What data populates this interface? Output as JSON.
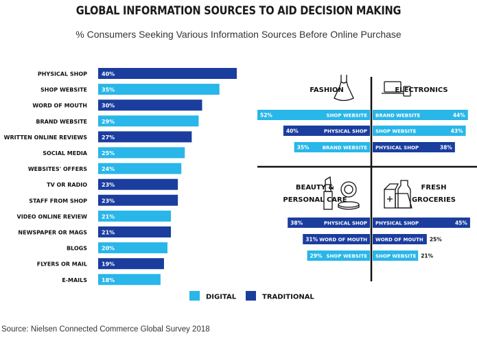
{
  "title": "GLOBAL INFORMATION SOURCES TO AID DECISION MAKING",
  "subtitle": "% Consumers Seeking Various Information Sources Before Online Purchase",
  "source": "Source: Nielsen Connected Commerce Global Survey 2018",
  "colors": {
    "digital": "#29b6e8",
    "traditional": "#1a3d9e"
  },
  "legend": [
    {
      "label": "DIGITAL",
      "type": "digital"
    },
    {
      "label": "TRADITIONAL",
      "type": "traditional"
    }
  ],
  "chart_data": [
    {
      "type": "bar",
      "orientation": "horizontal",
      "xlim": [
        0,
        40
      ],
      "categories": [
        "PHYSICAL SHOP",
        "SHOP WEBSITE",
        "WORD OF MOUTH",
        "BRAND WEBSITE",
        "WRITTEN ONLINE REVIEWS",
        "SOCIAL MEDIA",
        "WEBSITES' OFFERS",
        "TV OR RADIO",
        "STAFF FROM SHOP",
        "VIDEO ONLINE REVIEW",
        "NEWSPAPER OR MAGS",
        "BLOGS",
        "FLYERS OR MAIL",
        "E-MAILS"
      ],
      "values": [
        40,
        35,
        30,
        29,
        27,
        25,
        24,
        23,
        23,
        21,
        21,
        20,
        19,
        18
      ],
      "value_labels": [
        "40%",
        "35%",
        "30%",
        "29%",
        "27%",
        "25%",
        "24%",
        "23%",
        "23%",
        "21%",
        "21%",
        "20%",
        "19%",
        "18%"
      ],
      "source_type": [
        "traditional",
        "digital",
        "traditional",
        "digital",
        "traditional",
        "digital",
        "digital",
        "traditional",
        "traditional",
        "digital",
        "traditional",
        "digital",
        "traditional",
        "digital"
      ]
    },
    {
      "type": "bar",
      "panel": "FASHION",
      "side": "left",
      "categories": [
        "SHOP WEBSITE",
        "PHYSICAL SHOP",
        "BRAND WEBSITE"
      ],
      "values": [
        52,
        40,
        35
      ],
      "value_labels": [
        "52%",
        "40%",
        "35%"
      ],
      "source_type": [
        "digital",
        "traditional",
        "digital"
      ]
    },
    {
      "type": "bar",
      "panel": "ELECTRONICS",
      "side": "right",
      "categories": [
        "BRAND WEBSITE",
        "SHOP WEBSITE",
        "PHYSICAL SHOP"
      ],
      "values": [
        44,
        43,
        38
      ],
      "value_labels": [
        "44%",
        "43%",
        "38%"
      ],
      "source_type": [
        "digital",
        "digital",
        "traditional"
      ]
    },
    {
      "type": "bar",
      "panel": "BEAUTY & PERSONAL CARE",
      "title_lines": [
        "BEAUTY &",
        "PERSONAL CARE"
      ],
      "side": "left",
      "categories": [
        "PHYSICAL SHOP",
        "WORD OF MOUTH",
        "SHOP WEBSITE"
      ],
      "values": [
        38,
        31,
        29
      ],
      "value_labels": [
        "38%",
        "31%",
        "29%"
      ],
      "source_type": [
        "traditional",
        "traditional",
        "digital"
      ]
    },
    {
      "type": "bar",
      "panel": "FRESH GROCERIES",
      "title_lines": [
        "FRESH",
        "GROCERIES"
      ],
      "side": "right",
      "categories": [
        "PHYSICAL SHOP",
        "WORD OF MOUTH",
        "SHOP WEBSITE"
      ],
      "values": [
        45,
        25,
        21
      ],
      "value_labels": [
        "45%",
        "25%",
        "21%"
      ],
      "source_type": [
        "traditional",
        "traditional",
        "digital"
      ]
    }
  ],
  "icons": [
    "dress-icon",
    "electronics-icon",
    "cosmetics-icon",
    "groceries-icon"
  ]
}
